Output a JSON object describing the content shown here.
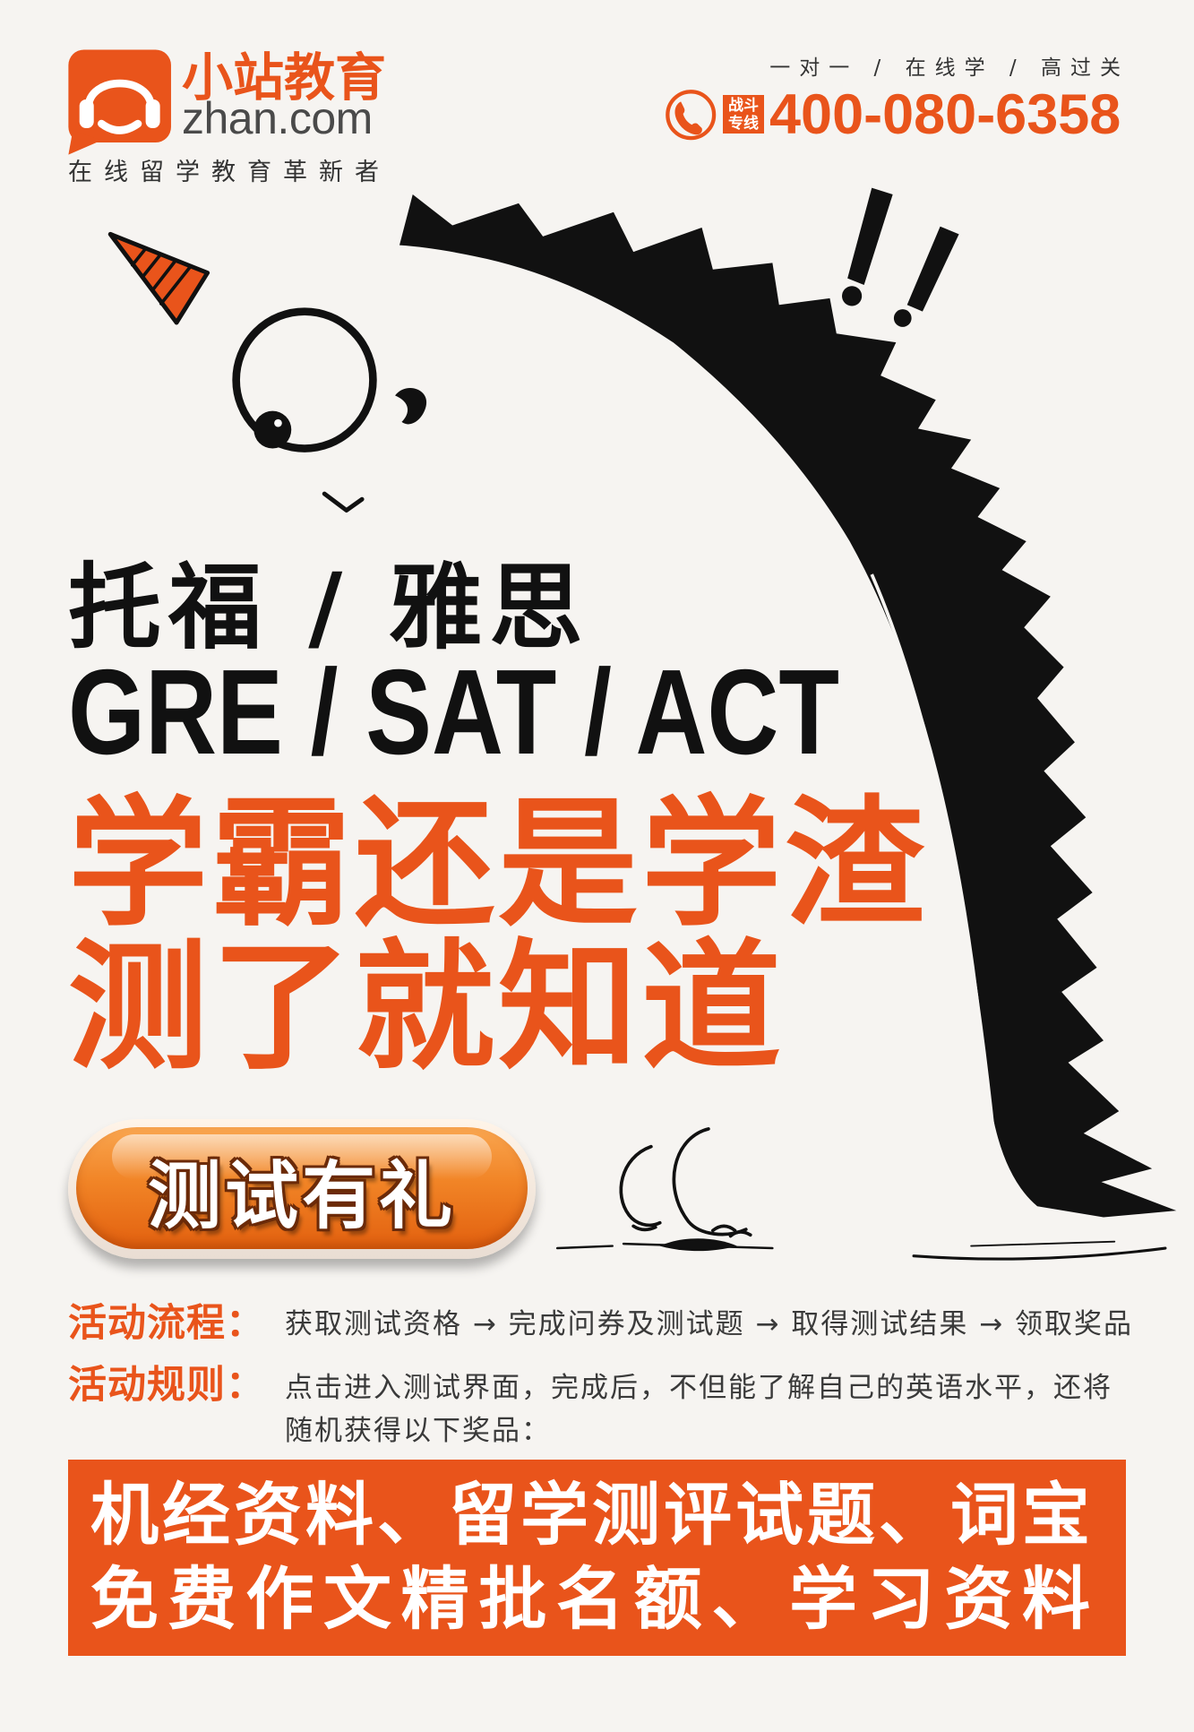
{
  "colors": {
    "brand_orange": "#e9541b",
    "background": "#f6f4f1",
    "ink": "#111111",
    "text": "#3a3a3a"
  },
  "icons": {
    "logo": "headset-logo-icon",
    "phone": "phone-icon",
    "hat": "party-hat-icon",
    "exclamation": "double-exclamation-icon"
  },
  "brand": {
    "name": "小站教育",
    "domain": "zhan.com",
    "tagline": "在线留学教育革新者"
  },
  "header": {
    "slogan": "一对一 / 在线学 / 高过关",
    "hotline_badge": [
      "战斗",
      "专线"
    ],
    "phone": "400-080-6358"
  },
  "hero": {
    "subjects_cn": "托福 / 雅思",
    "subjects_en": "GRE / SAT / ACT",
    "headline": [
      "学霸还是学渣",
      "测了就知道"
    ]
  },
  "cta": {
    "label": "测试有礼"
  },
  "activity": {
    "process_label": "活动流程：",
    "process_text": "获取测试资格 → 完成问券及测试题 → 取得测试结果 → 领取奖品",
    "rules_label": "活动规则：",
    "rules_text": [
      "点击进入测试界面，完成后，不但能了解自己的英语水平，还将",
      "随机获得以下奖品："
    ]
  },
  "prizes": [
    "机经资料、留学测评试题、词宝",
    "免费作文精批名额、学习资料"
  ]
}
